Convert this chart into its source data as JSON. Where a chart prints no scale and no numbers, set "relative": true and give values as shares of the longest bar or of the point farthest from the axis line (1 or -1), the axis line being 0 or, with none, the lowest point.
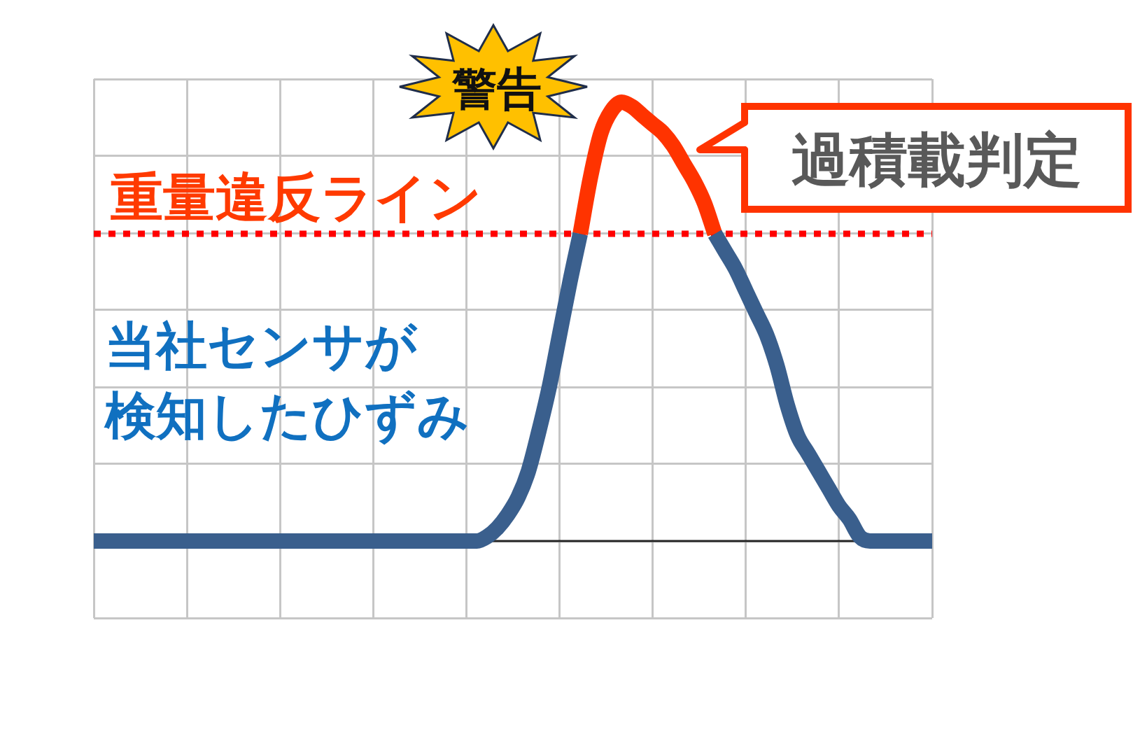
{
  "chart_data": {
    "type": "line",
    "relative": true,
    "categories": [
      null,
      null,
      null,
      null,
      null,
      null,
      null,
      null,
      null,
      null,
      null,
      null,
      null,
      null,
      null,
      null,
      null,
      null,
      null,
      null,
      null,
      null,
      null,
      null,
      null,
      null,
      null,
      null,
      null,
      null,
      null,
      null,
      null,
      null,
      null,
      null,
      null,
      null,
      null,
      null,
      null,
      null,
      null,
      null,
      null,
      null,
      null,
      null,
      null,
      null,
      null,
      null,
      null,
      null,
      null,
      null,
      null,
      null,
      null,
      null,
      null,
      null,
      null,
      null,
      null,
      null,
      null,
      null,
      null,
      null,
      null,
      null,
      null,
      null,
      null,
      null,
      null,
      null,
      null,
      null,
      null,
      null
    ],
    "series": [
      {
        "name": "当社センサが検知したひずみ",
        "color": "#3a5f8d",
        "values": [
          0,
          0,
          0,
          0,
          0,
          0,
          0,
          0,
          0,
          0,
          0,
          0,
          0,
          0,
          0,
          0,
          0,
          0,
          0,
          0,
          0,
          0,
          0,
          0,
          0,
          0,
          0,
          0,
          0,
          0,
          0,
          0,
          0,
          0,
          0,
          0,
          0,
          0,
          0.01,
          0.03,
          0.06,
          0.1,
          0.16,
          0.25,
          0.35,
          0.47,
          0.59,
          0.7,
          null,
          null,
          null,
          null,
          null,
          null,
          null,
          null,
          null,
          null,
          null,
          null,
          0.7,
          0.66,
          0.62,
          0.57,
          0.52,
          0.47,
          0.4,
          0.31,
          0.24,
          0.2,
          0.16,
          0.12,
          0.08,
          0.05,
          0.01,
          0,
          0,
          0,
          0,
          0,
          0,
          0
        ]
      },
      {
        "color": "#ff3300",
        "values": [
          null,
          null,
          null,
          null,
          null,
          null,
          null,
          null,
          null,
          null,
          null,
          null,
          null,
          null,
          null,
          null,
          null,
          null,
          null,
          null,
          null,
          null,
          null,
          null,
          null,
          null,
          null,
          null,
          null,
          null,
          null,
          null,
          null,
          null,
          null,
          null,
          null,
          null,
          null,
          null,
          null,
          null,
          null,
          null,
          null,
          null,
          null,
          0.7,
          0.83,
          0.93,
          0.98,
          1,
          0.99,
          0.97,
          0.95,
          0.93,
          0.9,
          0.86,
          0.82,
          0.77,
          0.7,
          null,
          null,
          null,
          null,
          null,
          null,
          null,
          null,
          null,
          null,
          null,
          null,
          null,
          null,
          null,
          null,
          null,
          null,
          null,
          null,
          null
        ]
      }
    ],
    "ref_lines": [
      {
        "axis": "y",
        "value": 0.7,
        "label": "重量違反ライン",
        "color": "#ff0000",
        "line_style": "dotted"
      },
      {
        "axis": "y",
        "value": 0,
        "color": "#262626"
      }
    ],
    "annotations": [
      "警告",
      "過積載判定"
    ],
    "grid": true,
    "tick_labels": false
  }
}
